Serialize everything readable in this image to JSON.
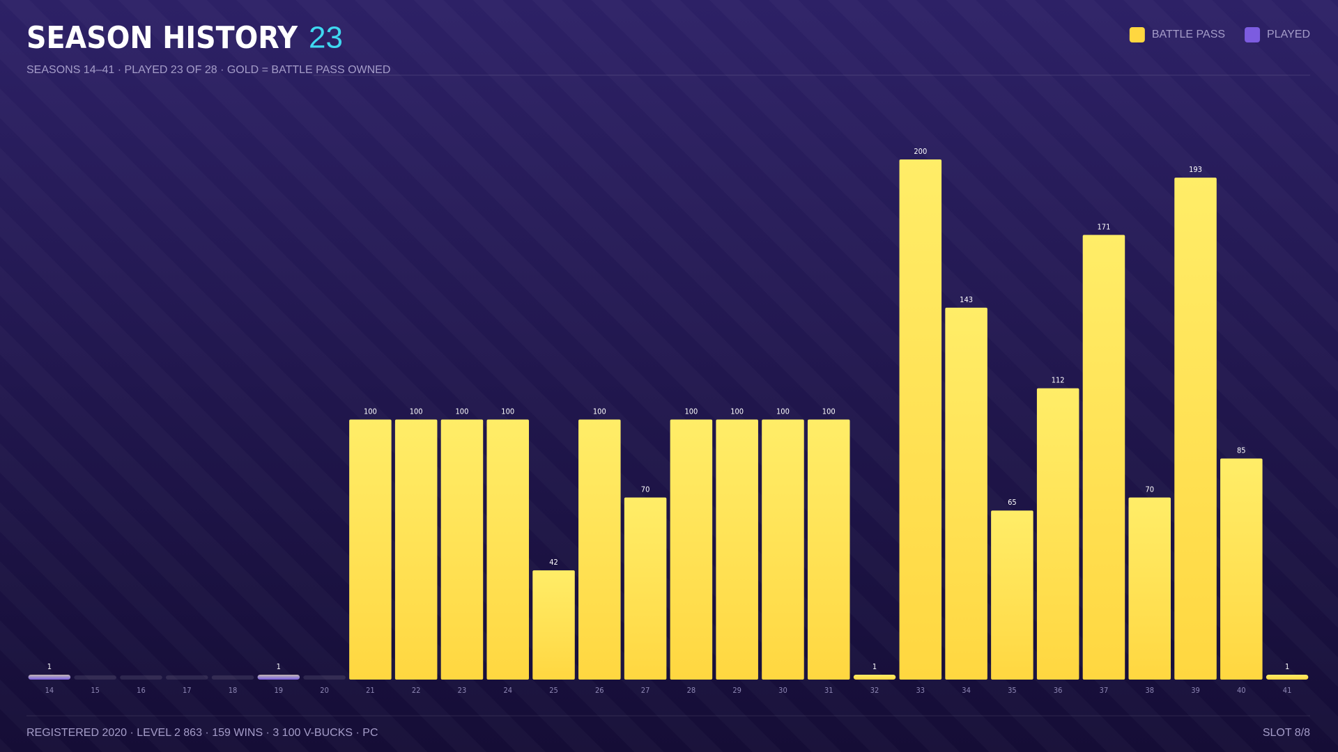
{
  "chart_data": {
    "type": "bar",
    "title": "SEASON HISTORY",
    "title_count": 23,
    "subtitle": "SEASONS 14–41 · PLAYED 23 OF 28 · GOLD = BATTLE PASS OWNED",
    "categories": [
      "14",
      "15",
      "16",
      "17",
      "18",
      "19",
      "20",
      "21",
      "22",
      "23",
      "24",
      "25",
      "26",
      "27",
      "28",
      "29",
      "30",
      "31",
      "32",
      "33",
      "34",
      "35",
      "36",
      "37",
      "38",
      "39",
      "40",
      "41"
    ],
    "series": [
      {
        "name": "BATTLE PASS",
        "color": "#ffd740",
        "values": [
          null,
          null,
          null,
          null,
          null,
          null,
          null,
          100,
          100,
          100,
          100,
          42,
          100,
          70,
          100,
          100,
          100,
          100,
          1,
          200,
          143,
          65,
          112,
          171,
          70,
          193,
          85,
          1
        ]
      },
      {
        "name": "PLAYED",
        "color": "#7c5ce0",
        "values": [
          1,
          null,
          null,
          null,
          null,
          1,
          null,
          null,
          null,
          null,
          null,
          null,
          null,
          null,
          null,
          null,
          null,
          null,
          null,
          null,
          null,
          null,
          null,
          null,
          null,
          null,
          null,
          null
        ]
      }
    ],
    "legend": "top-right",
    "footer": "REGISTERED 2020 · LEVEL 2 863 · 159 WINS · 3 100 V-BUCKS · PC",
    "slot": "SLOT 8/8"
  }
}
